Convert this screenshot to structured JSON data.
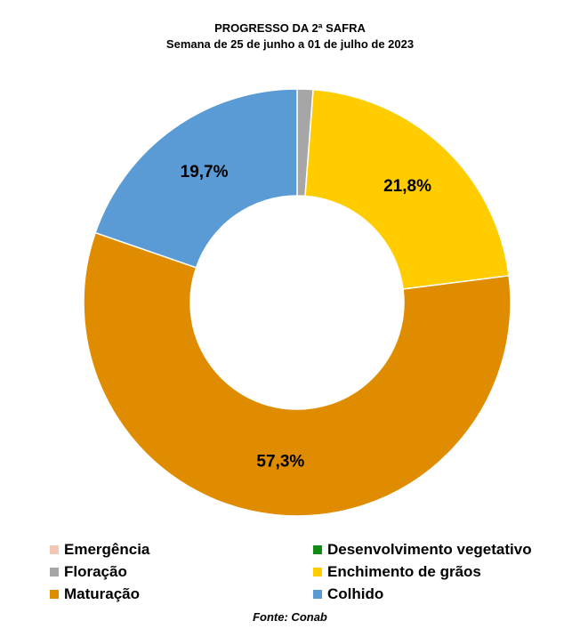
{
  "chart_data": {
    "type": "pie",
    "title": "PROGRESSO DA 2ª SAFRA",
    "subtitle": "Semana de 25 de junho a 01 de julho de 2023",
    "legend_position": "bottom",
    "categories": [
      "Emergência",
      "Desenvolvimento vegetativo",
      "Floração",
      "Enchimento de grãos",
      "Maturação",
      "Colhido"
    ],
    "values": [
      0.0,
      0.0,
      1.2,
      21.8,
      57.3,
      19.7
    ],
    "data_labels": [
      "",
      "",
      "",
      "21,8%",
      "57,3%",
      "19,7%"
    ],
    "colors": [
      "#f4c7b4",
      "#138a13",
      "#a6a6a6",
      "#ffcc00",
      "#e08c00",
      "#5b9bd5"
    ],
    "donut": true
  },
  "source": "Fonte: Conab"
}
